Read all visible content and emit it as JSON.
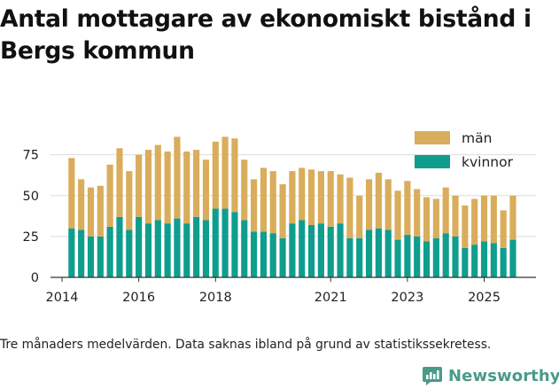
{
  "title": "Antal mottagare av ekonomiskt bistånd i Bergs kommun",
  "caption": "Tre månaders medelvärden. Data saknas ibland på grund av statistikssekretess.",
  "brand": {
    "name": "Newsworthy",
    "icon": "newsworthy-logo-icon"
  },
  "colors": {
    "man": "#d9ad5b",
    "kvinnor": "#0f9d8e",
    "grid": "#dddddd",
    "axis": "#333333"
  },
  "chart_data": {
    "type": "bar",
    "stacked": true,
    "title": "Antal mottagare av ekonomiskt bistånd i Bergs kommun",
    "xlabel": "",
    "ylabel": "",
    "ylim": [
      0,
      90
    ],
    "yticks": [
      0,
      25,
      50,
      75
    ],
    "xlim": [
      2013.7,
      2026.35
    ],
    "xticks": [
      2014,
      2016,
      2018,
      2021,
      2023,
      2025
    ],
    "legend": [
      "män",
      "kvinnor"
    ],
    "legend_position": "top-right",
    "x": [
      2014.25,
      2014.5,
      2014.75,
      2015.0,
      2015.25,
      2015.5,
      2015.75,
      2016.0,
      2016.25,
      2016.5,
      2016.75,
      2017.0,
      2017.25,
      2017.5,
      2017.75,
      2018.0,
      2018.25,
      2018.5,
      2018.75,
      2019.0,
      2019.25,
      2019.5,
      2019.75,
      2020.0,
      2020.25,
      2020.5,
      2020.75,
      2021.0,
      2021.25,
      2021.5,
      2021.75,
      2022.0,
      2022.25,
      2022.5,
      2022.75,
      2023.0,
      2023.25,
      2023.5,
      2023.75,
      2024.0,
      2024.25,
      2024.5,
      2024.75,
      2025.0,
      2025.25,
      2025.5,
      2025.75,
      2026.0
    ],
    "series": [
      {
        "name": "kvinnor",
        "values": [
          30,
          29,
          25,
          25,
          31,
          37,
          29,
          37,
          33,
          35,
          33,
          36,
          33,
          37,
          35,
          42,
          42,
          40,
          35,
          28,
          28,
          27,
          24,
          33,
          35,
          32,
          33,
          31,
          33,
          24,
          24,
          29,
          30,
          29,
          23,
          26,
          25,
          22,
          24,
          27,
          25,
          18,
          20,
          22,
          21,
          18,
          23,
          null
        ]
      },
      {
        "name": "män",
        "values": [
          43,
          31,
          30,
          31,
          38,
          42,
          36,
          38,
          45,
          46,
          44,
          50,
          44,
          41,
          37,
          41,
          44,
          45,
          37,
          32,
          39,
          38,
          33,
          32,
          32,
          34,
          32,
          34,
          30,
          37,
          26,
          31,
          34,
          31,
          30,
          33,
          29,
          27,
          24,
          28,
          25,
          26,
          28,
          28,
          29,
          23,
          27,
          null
        ]
      }
    ]
  }
}
